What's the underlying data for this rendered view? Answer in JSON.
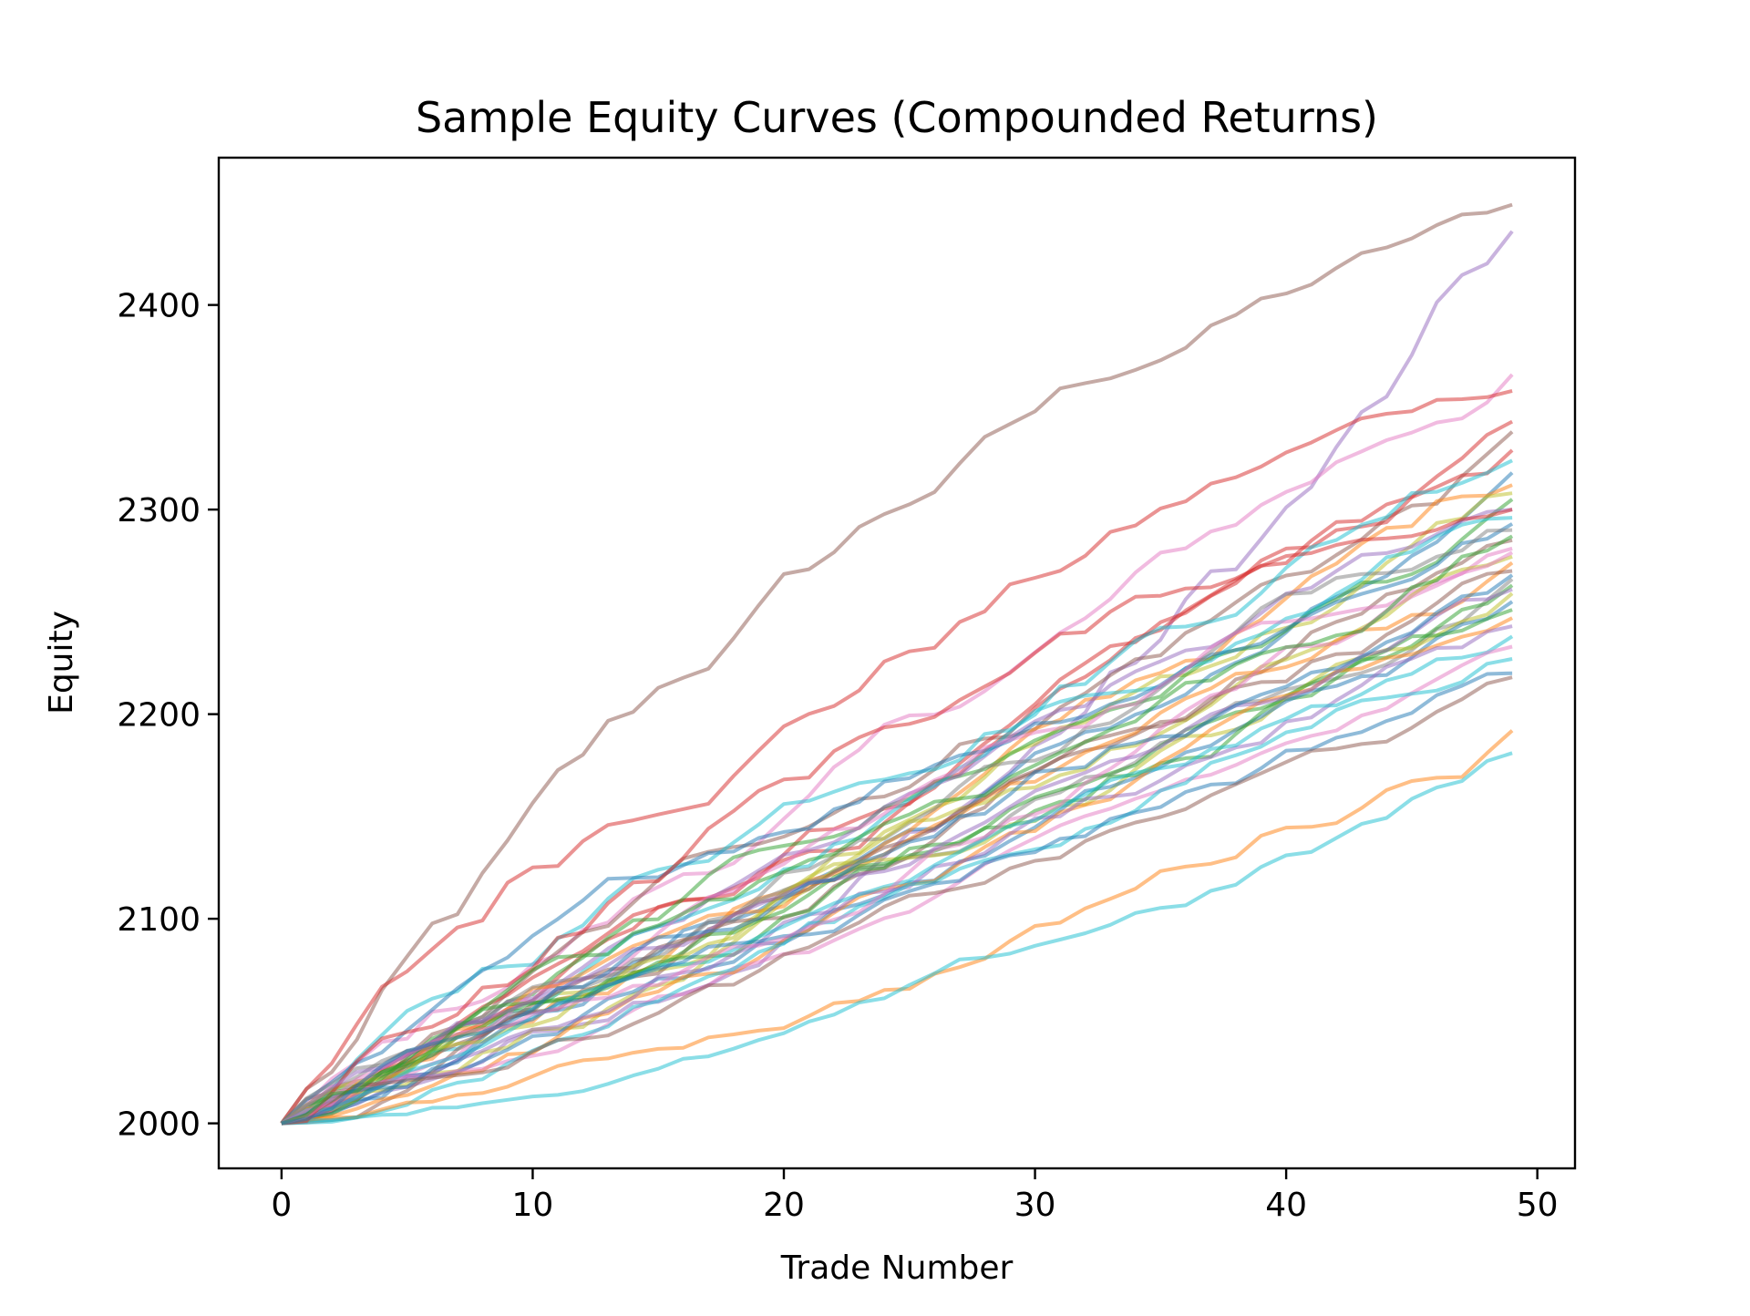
{
  "chart_data": {
    "type": "line",
    "title": "Sample Equity Curves (Compounded Returns)",
    "xlabel": "Trade Number",
    "ylabel": "Equity",
    "xlim": [
      -2.5,
      51.5
    ],
    "ylim": [
      1978,
      2472
    ],
    "xticks": [
      0,
      10,
      20,
      30,
      40,
      50
    ],
    "yticks": [
      2000,
      2100,
      2200,
      2300,
      2400
    ],
    "grid": false,
    "legend": "none",
    "n_points": 50,
    "start_value": 2000,
    "line_alpha": 0.5,
    "palette": [
      "#1f77b4",
      "#ff7f0e",
      "#2ca02c",
      "#d62728",
      "#9467bd",
      "#8c564b",
      "#e377c2",
      "#7f7f7f",
      "#bcbd22",
      "#17becf"
    ],
    "series": [
      {
        "final": 2449,
        "color": "#8c564b",
        "shape": "front"
      },
      {
        "final": 2436,
        "color": "#9467bd",
        "shape": "back"
      },
      {
        "final": 2366,
        "color": "#e377c2",
        "shape": "linear"
      },
      {
        "final": 2358,
        "color": "#d62728",
        "shape": "front"
      },
      {
        "final": 2343,
        "color": "#d62728",
        "shape": "linear"
      },
      {
        "final": 2338,
        "color": "#8c564b",
        "shape": "linear"
      },
      {
        "final": 2329,
        "color": "#d62728",
        "shape": "linear"
      },
      {
        "final": 2324,
        "color": "#17becf",
        "shape": "linear"
      },
      {
        "final": 2318,
        "color": "#1f77b4",
        "shape": "linear"
      },
      {
        "final": 2312,
        "color": "#ff7f0e",
        "shape": "linear"
      },
      {
        "final": 2308,
        "color": "#bcbd22",
        "shape": "linear"
      },
      {
        "final": 2305,
        "color": "#2ca02c",
        "shape": "linear"
      },
      {
        "final": 2300,
        "color": "#9467bd",
        "shape": "linear"
      },
      {
        "final": 2296,
        "color": "#17becf",
        "shape": "linear"
      },
      {
        "final": 2293,
        "color": "#1f77b4",
        "shape": "linear"
      },
      {
        "final": 2290,
        "color": "#7f7f7f",
        "shape": "linear"
      },
      {
        "final": 2285,
        "color": "#8c564b",
        "shape": "linear"
      },
      {
        "final": 2281,
        "color": "#e377c2",
        "shape": "linear"
      },
      {
        "final": 2277,
        "color": "#bcbd22",
        "shape": "linear"
      },
      {
        "final": 2274,
        "color": "#ff7f0e",
        "shape": "linear"
      },
      {
        "final": 2270,
        "color": "#8c564b",
        "shape": "linear"
      },
      {
        "final": 2266,
        "color": "#7f7f7f",
        "shape": "linear"
      },
      {
        "final": 2263,
        "color": "#2ca02c",
        "shape": "linear"
      },
      {
        "final": 2259,
        "color": "#bcbd22",
        "shape": "linear"
      },
      {
        "final": 2255,
        "color": "#1f77b4",
        "shape": "linear"
      },
      {
        "final": 2251,
        "color": "#2ca02c",
        "shape": "linear"
      },
      {
        "final": 2247,
        "color": "#ff7f0e",
        "shape": "linear"
      },
      {
        "final": 2243,
        "color": "#9467bd",
        "shape": "linear"
      },
      {
        "final": 2238,
        "color": "#17becf",
        "shape": "linear"
      },
      {
        "final": 2233,
        "color": "#e377c2",
        "shape": "linear"
      },
      {
        "final": 2227,
        "color": "#17becf",
        "shape": "linear"
      },
      {
        "final": 2220,
        "color": "#1f77b4",
        "shape": "linear"
      },
      {
        "final": 2218,
        "color": "#8c564b",
        "shape": "linear"
      },
      {
        "final": 2192,
        "color": "#ff7f0e",
        "shape": "back"
      },
      {
        "final": 2181,
        "color": "#17becf",
        "shape": "back"
      },
      {
        "final": 2300,
        "color": "#d62728",
        "shape": "front"
      },
      {
        "final": 2279,
        "color": "#e377c2",
        "shape": "linear"
      },
      {
        "final": 2261,
        "color": "#9467bd",
        "shape": "linear"
      },
      {
        "final": 2287,
        "color": "#2ca02c",
        "shape": "linear"
      },
      {
        "final": 2268,
        "color": "#1f77b4",
        "shape": "linear"
      }
    ]
  }
}
